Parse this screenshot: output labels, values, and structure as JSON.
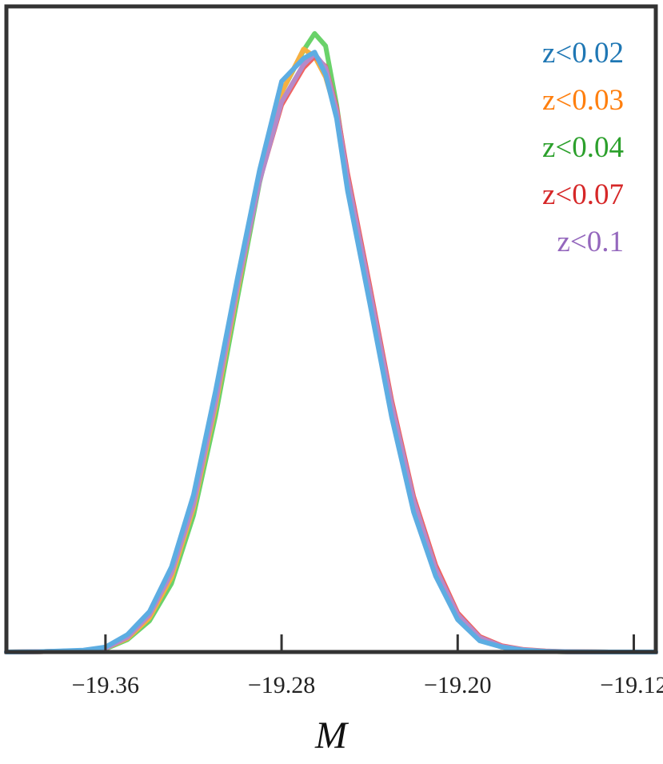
{
  "chart_data": {
    "type": "line",
    "xlabel": "M",
    "ylabel": "",
    "title": "",
    "xlim": [
      -19.405,
      -19.11
    ],
    "ylim": [
      0,
      1.0
    ],
    "xticks": [
      -19.36,
      -19.28,
      -19.2,
      -19.12
    ],
    "xtick_labels": [
      "−19.36",
      "−19.28",
      "−19.20",
      "−19.12"
    ],
    "grid": false,
    "legend_position": "top-right",
    "series": [
      {
        "name": "z<0.02",
        "color": "#1f77b4",
        "line_color": "#5dade2",
        "x": [
          -19.405,
          -19.39,
          -19.37,
          -19.36,
          -19.35,
          -19.34,
          -19.33,
          -19.32,
          -19.31,
          -19.3,
          -19.29,
          -19.28,
          -19.27,
          -19.265,
          -19.26,
          -19.255,
          -19.25,
          -19.24,
          -19.23,
          -19.22,
          -19.21,
          -19.2,
          -19.19,
          -19.18,
          -19.17,
          -19.16,
          -19.15,
          -19.14,
          -19.13,
          -19.12,
          -19.11
        ],
        "y": [
          0.0,
          0.0005,
          0.003,
          0.008,
          0.028,
          0.065,
          0.137,
          0.253,
          0.42,
          0.602,
          0.775,
          0.918,
          0.955,
          0.965,
          0.929,
          0.858,
          0.742,
          0.562,
          0.378,
          0.225,
          0.122,
          0.052,
          0.018,
          0.008,
          0.003,
          0.001,
          0.0003,
          0.0001,
          0.0,
          0.0,
          0.0
        ]
      },
      {
        "name": "z<0.03",
        "color": "#ff7f0e",
        "line_color": "#f5b041",
        "x": [
          -19.405,
          -19.39,
          -19.37,
          -19.36,
          -19.35,
          -19.34,
          -19.33,
          -19.32,
          -19.31,
          -19.3,
          -19.29,
          -19.28,
          -19.27,
          -19.265,
          -19.26,
          -19.255,
          -19.25,
          -19.24,
          -19.23,
          -19.22,
          -19.21,
          -19.2,
          -19.19,
          -19.18,
          -19.17,
          -19.16,
          -19.15,
          -19.14,
          -19.13,
          -19.12,
          -19.11
        ],
        "y": [
          0.0,
          0.0005,
          0.002,
          0.006,
          0.022,
          0.055,
          0.12,
          0.232,
          0.395,
          0.582,
          0.76,
          0.9,
          0.97,
          0.958,
          0.925,
          0.865,
          0.752,
          0.575,
          0.39,
          0.235,
          0.128,
          0.056,
          0.02,
          0.008,
          0.003,
          0.001,
          0.0003,
          0.0001,
          0.0,
          0.0,
          0.0
        ]
      },
      {
        "name": "z<0.04",
        "color": "#2ca02c",
        "line_color": "#6ad26a",
        "x": [
          -19.405,
          -19.39,
          -19.37,
          -19.36,
          -19.35,
          -19.34,
          -19.33,
          -19.32,
          -19.31,
          -19.3,
          -19.29,
          -19.28,
          -19.27,
          -19.265,
          -19.26,
          -19.255,
          -19.25,
          -19.24,
          -19.23,
          -19.22,
          -19.21,
          -19.2,
          -19.19,
          -19.18,
          -19.17,
          -19.16,
          -19.15,
          -19.14,
          -19.13,
          -19.12,
          -19.11
        ],
        "y": [
          0.0,
          0.0005,
          0.002,
          0.005,
          0.02,
          0.05,
          0.11,
          0.22,
          0.38,
          0.57,
          0.755,
          0.9,
          0.968,
          0.995,
          0.975,
          0.88,
          0.76,
          0.58,
          0.392,
          0.236,
          0.128,
          0.056,
          0.02,
          0.008,
          0.003,
          0.001,
          0.0003,
          0.0001,
          0.0,
          0.0,
          0.0
        ]
      },
      {
        "name": "z<0.07",
        "color": "#d62728",
        "line_color": "#f1625f",
        "x": [
          -19.405,
          -19.39,
          -19.37,
          -19.36,
          -19.35,
          -19.34,
          -19.33,
          -19.32,
          -19.31,
          -19.3,
          -19.29,
          -19.28,
          -19.27,
          -19.265,
          -19.26,
          -19.255,
          -19.25,
          -19.24,
          -19.23,
          -19.22,
          -19.21,
          -19.2,
          -19.19,
          -19.18,
          -19.17,
          -19.16,
          -19.15,
          -19.14,
          -19.13,
          -19.12,
          -19.11
        ],
        "y": [
          0.0,
          0.0005,
          0.002,
          0.006,
          0.024,
          0.06,
          0.128,
          0.24,
          0.405,
          0.59,
          0.758,
          0.88,
          0.94,
          0.958,
          0.942,
          0.875,
          0.77,
          0.59,
          0.405,
          0.25,
          0.14,
          0.063,
          0.025,
          0.01,
          0.004,
          0.0015,
          0.0005,
          0.0002,
          0.0,
          0.0,
          0.0
        ]
      },
      {
        "name": "z<0.1",
        "color": "#9467bd",
        "line_color": "#b58ac9",
        "x": [
          -19.405,
          -19.39,
          -19.37,
          -19.36,
          -19.35,
          -19.34,
          -19.33,
          -19.32,
          -19.31,
          -19.3,
          -19.29,
          -19.28,
          -19.27,
          -19.265,
          -19.26,
          -19.255,
          -19.25,
          -19.24,
          -19.23,
          -19.22,
          -19.21,
          -19.2,
          -19.19,
          -19.18,
          -19.17,
          -19.16,
          -19.15,
          -19.14,
          -19.13,
          -19.12,
          -19.11
        ],
        "y": [
          0.0,
          0.0005,
          0.002,
          0.006,
          0.024,
          0.06,
          0.127,
          0.238,
          0.402,
          0.588,
          0.757,
          0.885,
          0.945,
          0.962,
          0.94,
          0.87,
          0.762,
          0.582,
          0.398,
          0.244,
          0.134,
          0.06,
          0.023,
          0.009,
          0.0035,
          0.0012,
          0.0004,
          0.0001,
          0.0,
          0.0,
          0.0
        ]
      }
    ]
  }
}
